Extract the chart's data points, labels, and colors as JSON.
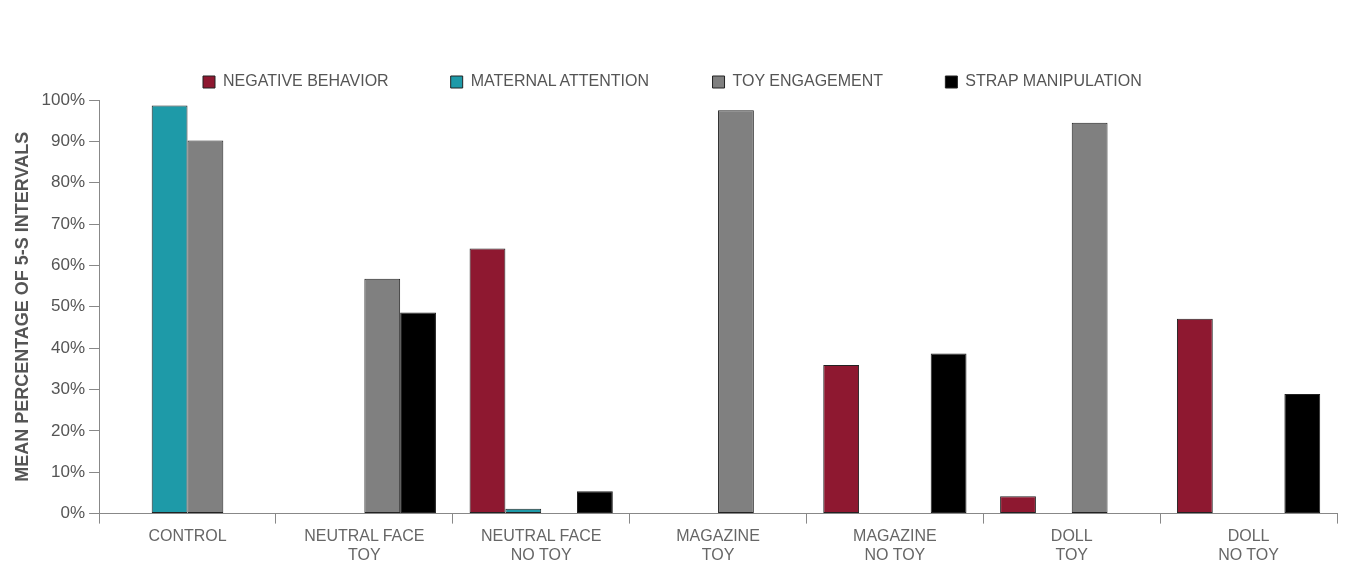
{
  "chart_data": {
    "type": "bar",
    "ylabel": "MEAN PERCENTAGE OF 5-S INTERVALS",
    "categories": [
      "CONTROL",
      "NEUTRAL FACE\nTOY",
      "NEUTRAL FACE\nNO TOY",
      "MAGAZINE\nTOY",
      "MAGAZINE\nNO TOY",
      "DOLL\nTOY",
      "DOLL\nNO TOY"
    ],
    "series": [
      {
        "name": "NEGATIVE BEHAVIOR",
        "color": "#8e1830",
        "values": [
          null,
          null,
          64.1,
          null,
          35.9,
          4.2,
          47.1
        ]
      },
      {
        "name": "MATERNAL ATTENTION",
        "color": "#1e9aa8",
        "values": [
          98.7,
          null,
          1.2,
          null,
          null,
          null,
          null
        ]
      },
      {
        "name": "TOY ENGAGEMENT",
        "color": "#808080",
        "values": [
          90.2,
          56.8,
          null,
          97.5,
          null,
          94.5,
          null
        ]
      },
      {
        "name": "STRAP MANIPULATION",
        "color": "#000000",
        "values": [
          null,
          48.6,
          5.4,
          null,
          38.7,
          null,
          28.9
        ]
      }
    ],
    "ylim": [
      0,
      100
    ],
    "yticks": [
      {
        "value": 0,
        "label": "0%"
      },
      {
        "value": 10,
        "label": "10%"
      },
      {
        "value": 20,
        "label": "20%"
      },
      {
        "value": 30,
        "label": "30%"
      },
      {
        "value": 40,
        "label": "40%"
      },
      {
        "value": 50,
        "label": "50%"
      },
      {
        "value": 60,
        "label": "60%"
      },
      {
        "value": 70,
        "label": "70%"
      },
      {
        "value": 80,
        "label": "80%"
      },
      {
        "value": 90,
        "label": "90%"
      },
      {
        "value": 100,
        "label": "100%"
      }
    ],
    "grid": false,
    "legend": "top"
  }
}
